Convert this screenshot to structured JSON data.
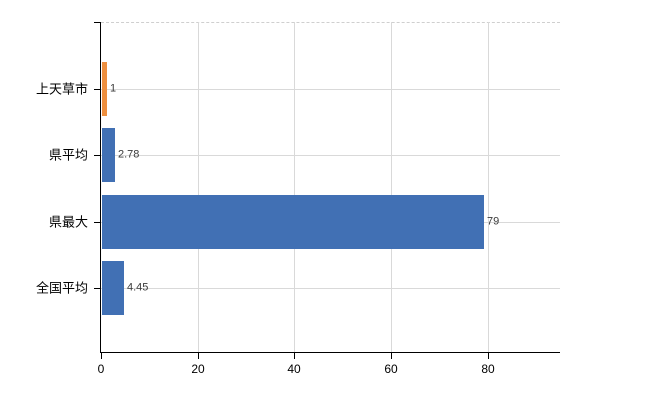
{
  "chart_data": {
    "type": "bar",
    "orientation": "horizontal",
    "title": "",
    "categories": [
      "上天草市",
      "県平均",
      "県最大",
      "全国平均"
    ],
    "values": [
      1,
      2.78,
      79,
      4.45
    ],
    "value_labels": [
      "1",
      "2.78",
      "79",
      "4.45"
    ],
    "bar_colors": [
      "#ee8f3f",
      "#4170b4",
      "#4170b4",
      "#4170b4"
    ],
    "x_tick_labels": [
      "0",
      "20",
      "40",
      "60",
      "80"
    ],
    "x_tick_values": [
      0,
      20,
      40,
      60,
      80
    ],
    "xlim": [
      0,
      95
    ],
    "grid": true,
    "legend_position": "none",
    "colors": {
      "bar_highlight": "#ee8f3f",
      "bar_default": "#4170b4",
      "gridline": "#d9d9d9",
      "axis": "#000000",
      "category_text": "#000000",
      "value_text": "#3a3a3a",
      "background": "#ffffff"
    }
  }
}
